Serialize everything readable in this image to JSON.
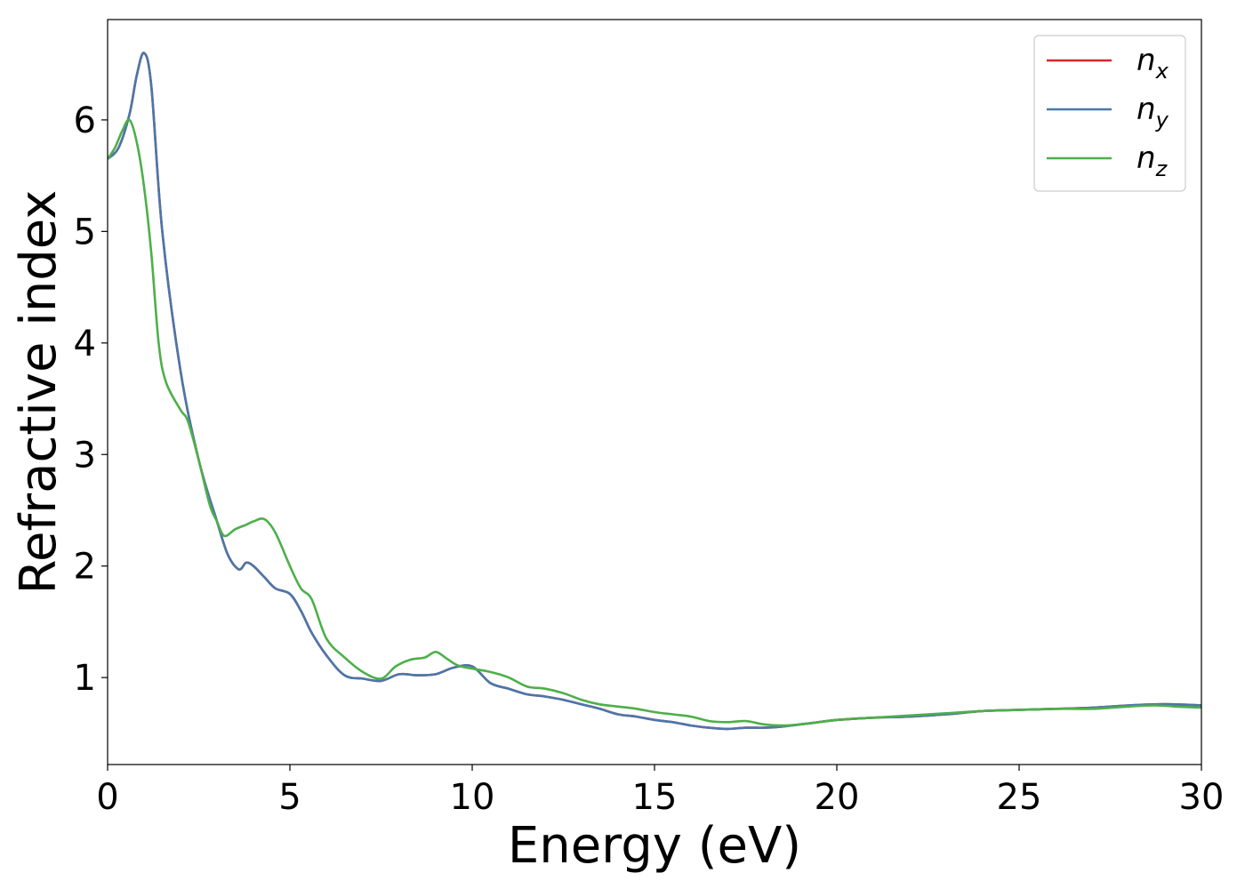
{
  "chart_data": {
    "type": "line",
    "xlabel": "Energy (eV)",
    "ylabel": "Refractive index",
    "xlim": [
      0,
      30
    ],
    "ylim": [
      0.22,
      6.9
    ],
    "xticks": [
      0,
      5,
      10,
      15,
      20,
      25,
      30
    ],
    "xtick_labels": [
      "0",
      "5",
      "10",
      "15",
      "20",
      "25",
      "30"
    ],
    "yticks": [
      1,
      2,
      3,
      4,
      5,
      6
    ],
    "ytick_labels": [
      "1",
      "2",
      "3",
      "4",
      "5",
      "6"
    ],
    "grid": false,
    "legend_position": "top-right",
    "series": [
      {
        "name": "n",
        "subscript": "x",
        "color": "#d62728",
        "x": [
          0,
          0.3,
          0.6,
          0.8,
          1.0,
          1.2,
          1.5,
          2.0,
          2.5,
          3.0,
          3.3,
          3.6,
          3.8,
          4.0,
          4.3,
          4.6,
          5.0,
          5.3,
          5.6,
          6.0,
          6.5,
          7.0,
          7.5,
          8.0,
          8.5,
          9.0,
          9.5,
          10.0,
          10.5,
          11.0,
          11.5,
          12.0,
          12.5,
          13.0,
          13.5,
          14.0,
          14.5,
          15.0,
          15.5,
          16.0,
          16.5,
          17.0,
          17.5,
          18.0,
          18.5,
          19.0,
          19.5,
          20.0,
          21.0,
          22.0,
          23.0,
          24.0,
          25.0,
          26.0,
          27.0,
          28.0,
          28.7,
          29.3,
          30.0
        ],
        "y": [
          5.65,
          5.75,
          6.05,
          6.4,
          6.6,
          6.3,
          5.0,
          3.75,
          2.95,
          2.4,
          2.1,
          1.97,
          2.03,
          2.0,
          1.9,
          1.8,
          1.75,
          1.6,
          1.4,
          1.2,
          1.02,
          0.99,
          0.97,
          1.03,
          1.02,
          1.03,
          1.09,
          1.1,
          0.95,
          0.9,
          0.85,
          0.83,
          0.8,
          0.76,
          0.72,
          0.67,
          0.65,
          0.62,
          0.6,
          0.57,
          0.55,
          0.54,
          0.55,
          0.55,
          0.56,
          0.58,
          0.6,
          0.62,
          0.64,
          0.65,
          0.67,
          0.7,
          0.71,
          0.72,
          0.73,
          0.75,
          0.76,
          0.76,
          0.75
        ]
      },
      {
        "name": "n",
        "subscript": "y",
        "color": "#4a77aa",
        "x": [
          0,
          0.3,
          0.6,
          0.8,
          1.0,
          1.2,
          1.5,
          2.0,
          2.5,
          3.0,
          3.3,
          3.6,
          3.8,
          4.0,
          4.3,
          4.6,
          5.0,
          5.3,
          5.6,
          6.0,
          6.5,
          7.0,
          7.5,
          8.0,
          8.5,
          9.0,
          9.5,
          10.0,
          10.5,
          11.0,
          11.5,
          12.0,
          12.5,
          13.0,
          13.5,
          14.0,
          14.5,
          15.0,
          15.5,
          16.0,
          16.5,
          17.0,
          17.5,
          18.0,
          18.5,
          19.0,
          19.5,
          20.0,
          21.0,
          22.0,
          23.0,
          24.0,
          25.0,
          26.0,
          27.0,
          28.0,
          28.7,
          29.3,
          30.0
        ],
        "y": [
          5.65,
          5.75,
          6.05,
          6.4,
          6.6,
          6.3,
          5.0,
          3.75,
          2.95,
          2.4,
          2.1,
          1.97,
          2.03,
          2.0,
          1.9,
          1.8,
          1.75,
          1.6,
          1.4,
          1.2,
          1.02,
          0.99,
          0.97,
          1.03,
          1.02,
          1.03,
          1.09,
          1.1,
          0.95,
          0.9,
          0.85,
          0.83,
          0.8,
          0.76,
          0.72,
          0.67,
          0.65,
          0.62,
          0.6,
          0.57,
          0.55,
          0.54,
          0.55,
          0.55,
          0.56,
          0.58,
          0.6,
          0.62,
          0.64,
          0.65,
          0.67,
          0.7,
          0.71,
          0.72,
          0.73,
          0.75,
          0.76,
          0.76,
          0.75
        ]
      },
      {
        "name": "n",
        "subscript": "z",
        "color": "#4daf4a",
        "x": [
          0,
          0.2,
          0.4,
          0.6,
          0.8,
          1.0,
          1.2,
          1.4,
          1.6,
          2.0,
          2.2,
          2.5,
          2.8,
          3.0,
          3.2,
          3.5,
          3.8,
          4.0,
          4.3,
          4.6,
          5.0,
          5.3,
          5.6,
          6.0,
          6.5,
          7.0,
          7.5,
          7.9,
          8.3,
          8.7,
          9.0,
          9.3,
          9.6,
          10.0,
          10.5,
          11.0,
          11.5,
          12.0,
          12.5,
          13.0,
          13.5,
          14.0,
          14.5,
          15.0,
          15.5,
          16.0,
          16.5,
          17.0,
          17.5,
          18.0,
          18.5,
          19.0,
          19.5,
          20.0,
          21.0,
          22.0,
          23.0,
          24.0,
          25.0,
          26.0,
          27.0,
          28.0,
          28.7,
          29.3,
          30.0
        ],
        "y": [
          5.65,
          5.75,
          5.9,
          6.0,
          5.8,
          5.4,
          4.8,
          4.0,
          3.65,
          3.4,
          3.3,
          2.95,
          2.55,
          2.4,
          2.27,
          2.33,
          2.37,
          2.4,
          2.42,
          2.3,
          2.0,
          1.8,
          1.7,
          1.35,
          1.18,
          1.05,
          0.99,
          1.1,
          1.16,
          1.18,
          1.23,
          1.17,
          1.11,
          1.08,
          1.05,
          1.0,
          0.92,
          0.9,
          0.86,
          0.8,
          0.76,
          0.74,
          0.72,
          0.69,
          0.67,
          0.65,
          0.61,
          0.6,
          0.61,
          0.58,
          0.57,
          0.58,
          0.6,
          0.62,
          0.64,
          0.66,
          0.68,
          0.7,
          0.71,
          0.72,
          0.72,
          0.74,
          0.75,
          0.74,
          0.73
        ]
      }
    ]
  }
}
